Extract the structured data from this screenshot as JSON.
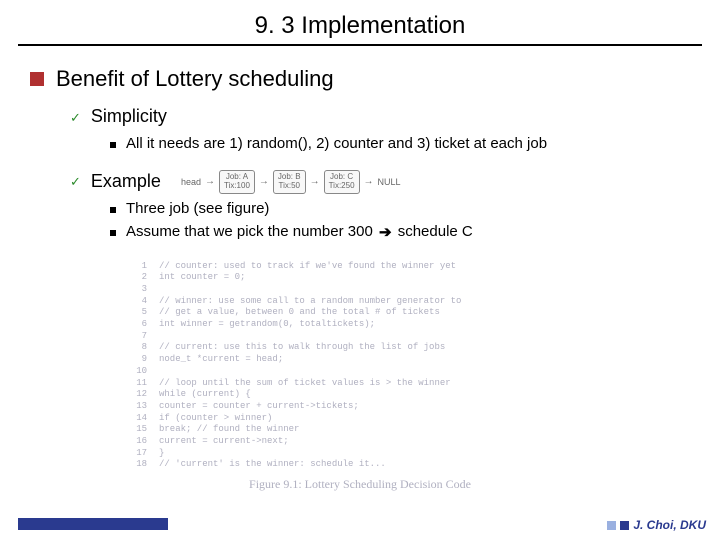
{
  "title": "9. 3 Implementation",
  "heading": "Benefit of Lottery scheduling",
  "sub1": "Simplicity",
  "sub1_detail": "All it needs are 1) random(), 2) counter and 3) ticket at each job",
  "sub2": "Example",
  "list_fig": {
    "head": "head",
    "nodes": [
      {
        "name": "Job: A",
        "tix": "Tix:100"
      },
      {
        "name": "Job: B",
        "tix": "Tix:50"
      },
      {
        "name": "Job: C",
        "tix": "Tix:250"
      }
    ],
    "null": "NULL"
  },
  "sub2_detail1": "Three job (see figure)",
  "sub2_detail2_a": "Assume that we pick the number 300 ",
  "sub2_detail2_b": " schedule C",
  "code": [
    {
      "n": "1",
      "t": "// counter: used to track if we've found the winner yet"
    },
    {
      "n": "2",
      "t": "int counter = 0;"
    },
    {
      "n": "3",
      "t": ""
    },
    {
      "n": "4",
      "t": "// winner: use some call to a random number generator to"
    },
    {
      "n": "5",
      "t": "//         get a value, between 0 and the total # of tickets"
    },
    {
      "n": "6",
      "t": "int winner = getrandom(0, totaltickets);"
    },
    {
      "n": "7",
      "t": ""
    },
    {
      "n": "8",
      "t": "// current: use this to walk through the list of jobs"
    },
    {
      "n": "9",
      "t": "node_t *current = head;"
    },
    {
      "n": "10",
      "t": ""
    },
    {
      "n": "11",
      "t": "// loop until the sum of ticket values is > the winner"
    },
    {
      "n": "12",
      "t": "while (current) {"
    },
    {
      "n": "13",
      "t": "    counter = counter + current->tickets;"
    },
    {
      "n": "14",
      "t": "    if (counter > winner)"
    },
    {
      "n": "15",
      "t": "        break; // found the winner"
    },
    {
      "n": "16",
      "t": "    current = current->next;"
    },
    {
      "n": "17",
      "t": "}"
    },
    {
      "n": "18",
      "t": "// 'current' is the winner: schedule it..."
    }
  ],
  "fig_caption": "Figure 9.1: Lottery Scheduling Decision Code",
  "author": "J. Choi, DKU",
  "colors": {
    "bullet1": "#b03030",
    "check": "#2a8a2a",
    "footer": "#2a3a8f"
  }
}
